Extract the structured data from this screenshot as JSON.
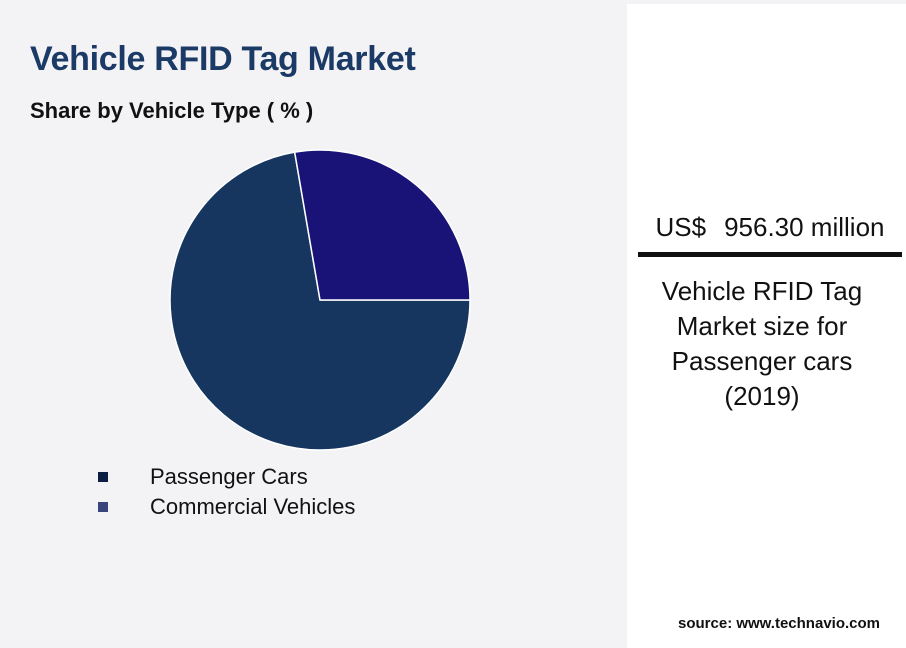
{
  "header": {
    "title": "Vehicle RFID Tag Market",
    "subtitle": "Share by Vehicle Type ( % )"
  },
  "chart_data": {
    "type": "pie",
    "categories": [
      "Passenger Cars",
      "Commercial Vehicles"
    ],
    "values": [
      72.3,
      27.7
    ],
    "colors": [
      "#163660",
      "#1a1377"
    ],
    "legend_colors": [
      "#0d1f40",
      "#38457d"
    ],
    "legend_position": "bottom-left"
  },
  "kpi": {
    "currency": "US$",
    "amount": "956.30 million",
    "caption": "Vehicle RFID Tag Market size for Passenger cars (2019)"
  },
  "source": "source: www.technavio.com"
}
